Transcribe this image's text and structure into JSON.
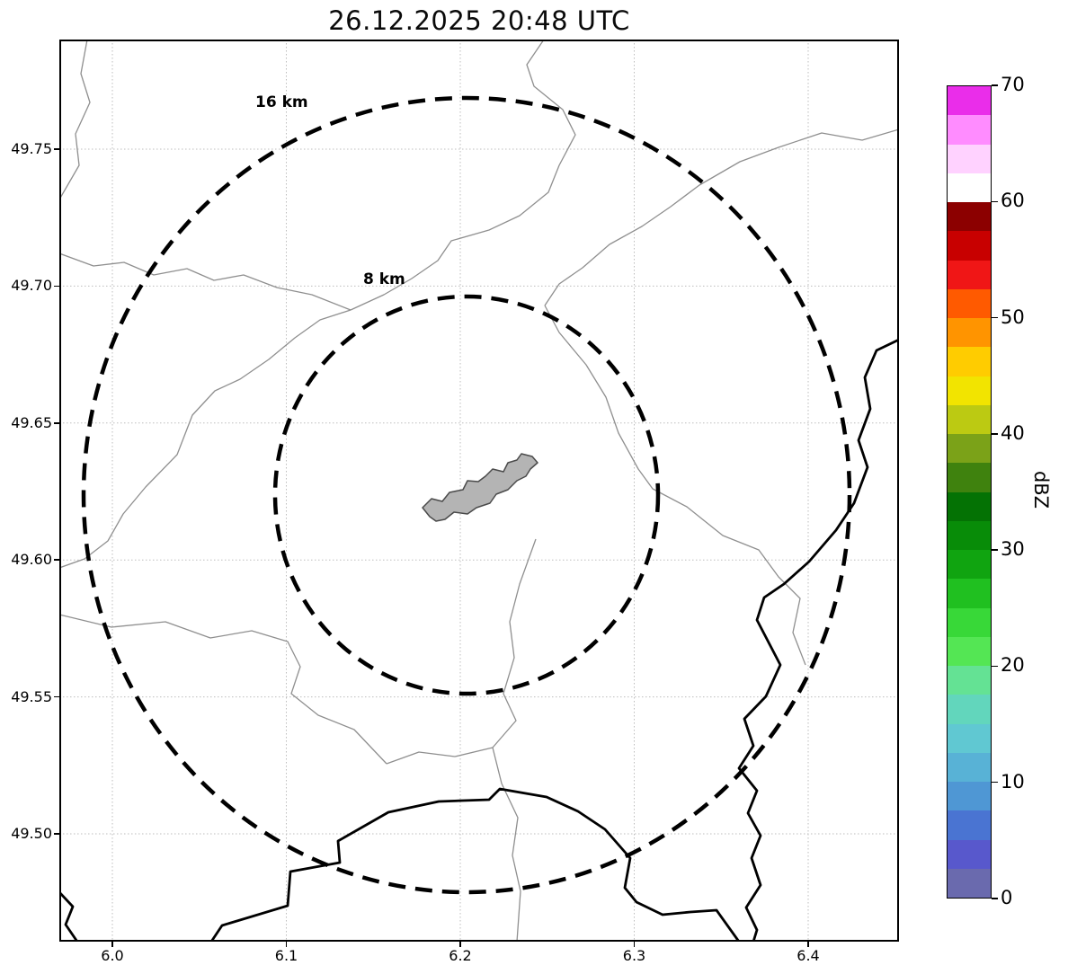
{
  "title": "26.12.2025 20:48 UTC",
  "map": {
    "x_axis": {
      "ticks": [
        "6.0",
        "6.1",
        "6.2",
        "6.3",
        "6.4"
      ]
    },
    "y_axis": {
      "ticks": [
        "49.75",
        "49.70",
        "49.65",
        "49.60",
        "49.55",
        "49.50"
      ]
    },
    "range_rings": [
      {
        "label": "16 km",
        "radius_km": 16,
        "style": "dashed",
        "color": "#000000"
      },
      {
        "label": "8 km",
        "radius_km": 8,
        "style": "dashed",
        "color": "#000000"
      }
    ],
    "features": {
      "urban_area_fill": "#b4b4b4",
      "boundary_line_color": "#8f8f8f",
      "border_line_color": "#000000",
      "grid_style": "dotted"
    }
  },
  "colorbar": {
    "label": "dBZ",
    "min": 0,
    "max": 70,
    "ticks_top_to_bottom": [
      "70",
      "60",
      "50",
      "40",
      "30",
      "20",
      "10",
      "0"
    ],
    "colors_bottom_to_top": [
      "#6a6aae",
      "#5858cc",
      "#4a74d2",
      "#4f97d4",
      "#58b2d6",
      "#60c8d2",
      "#62d6bc",
      "#64e294",
      "#54e654",
      "#38d838",
      "#20c020",
      "#10a410",
      "#088c08",
      "#047204",
      "#3f820e",
      "#7ba218",
      "#bcca12",
      "#f2e400",
      "#ffcc00",
      "#ff9400",
      "#ff5a00",
      "#f01616",
      "#c80000",
      "#8c0000",
      "#ffffff",
      "#ffd2ff",
      "#ff8cff",
      "#ea2dea"
    ]
  }
}
